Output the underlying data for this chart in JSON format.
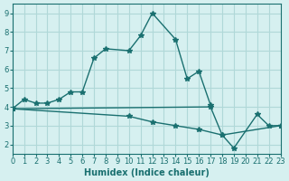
{
  "xlabel": "Humidex (Indice chaleur)",
  "ylabel": "",
  "bg_color": "#d6f0f0",
  "grid_color": "#b0d8d8",
  "line_color": "#1a7070",
  "xlim": [
    0,
    23
  ],
  "ylim": [
    1.5,
    9.5
  ],
  "xticks": [
    0,
    1,
    2,
    3,
    4,
    5,
    6,
    7,
    8,
    9,
    10,
    11,
    12,
    13,
    14,
    15,
    16,
    17,
    18,
    19,
    20,
    21,
    22,
    23
  ],
  "yticks": [
    2,
    3,
    4,
    5,
    6,
    7,
    8,
    9
  ],
  "s1_x": [
    0,
    1,
    2,
    3,
    4,
    5,
    6,
    7,
    8,
    10,
    11,
    12,
    14,
    15,
    16,
    17
  ],
  "s1_y": [
    3.9,
    4.4,
    4.2,
    4.2,
    4.4,
    4.8,
    4.8,
    6.6,
    7.1,
    7.0,
    7.8,
    9.0,
    7.6,
    5.5,
    5.9,
    4.1
  ],
  "s2_x": [
    0,
    17,
    18,
    19,
    21,
    22,
    23
  ],
  "s2_y": [
    3.9,
    4.0,
    2.5,
    1.8,
    3.6,
    3.0,
    3.0
  ],
  "s3_x": [
    0,
    10,
    12,
    14,
    16,
    18,
    23
  ],
  "s3_y": [
    3.9,
    3.5,
    3.2,
    3.0,
    2.8,
    2.5,
    3.0
  ]
}
